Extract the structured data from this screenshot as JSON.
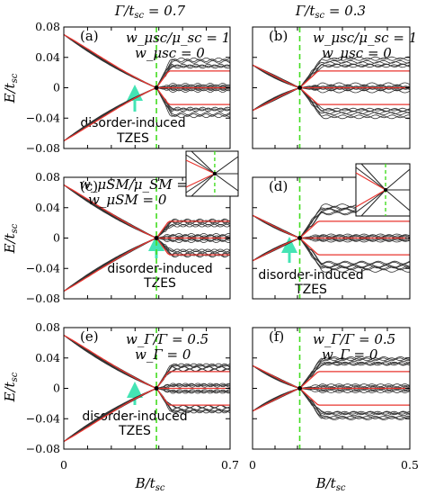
{
  "figure": {
    "col_titles": [
      "Γ/t_sc = 0.7",
      "Γ/t_sc = 0.3"
    ],
    "ylabel": "E/t_sc",
    "xlabel": "B/t_sc",
    "yticks": [
      "0.08",
      "0.04",
      "0",
      "−0.04",
      "−0.08"
    ],
    "xticks_left": [
      "0",
      "0.7"
    ],
    "xticks_right": [
      "0",
      "0.5"
    ],
    "annotation_line1": "disorder-induced",
    "annotation_line2": "TZES"
  },
  "colors": {
    "disordered": "#333333",
    "clean": "#e8352f",
    "transition": "#44dd22",
    "arrow": "#44e4b4"
  },
  "chart_data": [
    {
      "panel": "(a)",
      "type": "line",
      "gamma": 0.7,
      "xlabel": "B/t_sc",
      "xlim": [
        0,
        0.7
      ],
      "ylim": [
        -0.08,
        0.08
      ],
      "legend": [
        "w_μsc/μ_sc = 1",
        "w_μsc = 0"
      ],
      "transition_x": 0.39,
      "clean_gap_at_x0": 0.07,
      "disorder_split_high": 0.03,
      "annotation": "disorder-induced TZES"
    },
    {
      "panel": "(b)",
      "type": "line",
      "gamma": 0.3,
      "xlabel": "B/t_sc",
      "xlim": [
        0,
        0.5
      ],
      "ylim": [
        -0.08,
        0.08
      ],
      "legend": [
        "w_μsc/μ_sc = 1",
        "w_μsc = 0"
      ],
      "transition_x": 0.15,
      "clean_gap_at_x0": 0.03,
      "disorder_split_high": 0.03
    },
    {
      "panel": "(c)",
      "type": "line",
      "gamma": 0.7,
      "xlabel": "B/t_sc",
      "xlim": [
        0,
        0.7
      ],
      "ylim": [
        -0.08,
        0.08
      ],
      "legend": [
        "w_μSM/μ_SM = 2",
        "w_μSM = 0"
      ],
      "transition_x": 0.39,
      "clean_gap_at_x0": 0.07,
      "disorder_split_high": 0.018,
      "annotation": "disorder-induced TZES",
      "inset": true
    },
    {
      "panel": "(d)",
      "type": "line",
      "gamma": 0.3,
      "xlabel": "B/t_sc",
      "xlim": [
        0,
        0.5
      ],
      "ylim": [
        -0.08,
        0.08
      ],
      "legend": [],
      "transition_x": 0.15,
      "clean_gap_at_x0": 0.03,
      "disorder_split_high": 0.035,
      "annotation": "disorder-induced TZES",
      "inset": true
    },
    {
      "panel": "(e)",
      "type": "line",
      "gamma": 0.7,
      "xlabel": "B/t_sc",
      "xlim": [
        0,
        0.7
      ],
      "ylim": [
        -0.08,
        0.08
      ],
      "legend": [
        "w_Γ/Γ = 0.5",
        "w_Γ = 0"
      ],
      "transition_x": 0.39,
      "clean_gap_at_x0": 0.07,
      "disorder_split_high": 0.025,
      "annotation": "disorder-induced TZES"
    },
    {
      "panel": "(f)",
      "type": "line",
      "gamma": 0.3,
      "xlabel": "B/t_sc",
      "xlim": [
        0,
        0.5
      ],
      "ylim": [
        -0.08,
        0.08
      ],
      "legend": [
        "w_Γ/Γ = 0.5",
        "w_Γ = 0"
      ],
      "transition_x": 0.15,
      "clean_gap_at_x0": 0.03,
      "disorder_split_high": 0.035
    }
  ]
}
